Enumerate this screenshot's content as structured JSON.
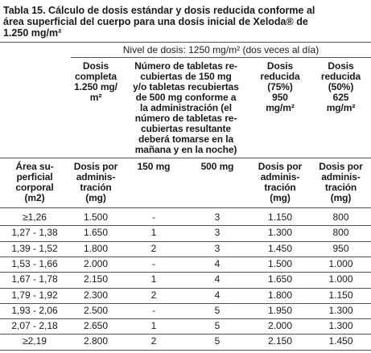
{
  "title": {
    "lines": [
      "Tabla 15. Cálculo de dosis estándar y dosis reducida conforme al",
      "área superficial del cuerpo para una dosis inicial de Xeloda® de",
      "1.250 mg/m²"
    ]
  },
  "table": {
    "group_header": "Nivel de dosis: 1250 mg/m² (dos veces al día)",
    "header_top": [
      "Dosis\ncompleta\n1.250 mg/\nm²",
      "Número de tabletas re-\ncubiertas de 150 mg\ny/o tabletas recubiertas\nde 500 mg conforme a\nla administración (el\nnúmero de tabletas re-\ncubiertas resultante\ndeberá tomarse en la\nmañana y en la noche)",
      "Dosis\nreducida\n(75%)\n950\nmg/m²",
      "Dosis\nreducida\n(50%)\n625\nmg/m²"
    ],
    "header": [
      "Área su-\nperficial\ncorporal\n(m2)",
      "Dosis por\nadminis-\ntración\n(mg)",
      "150 mg",
      "500 mg",
      "Dosis por\nadminis-\ntración\n(mg)",
      "Dosis por\nadminis-\ntración\n(mg)"
    ],
    "rows": [
      [
        "≥1,26",
        "1.500",
        "-",
        "3",
        "1.150",
        "800"
      ],
      [
        "1,27 - 1,38",
        "1.650",
        "1",
        "3",
        "1.300",
        "800"
      ],
      [
        "1,39 - 1,52",
        "1.800",
        "2",
        "3",
        "1.450",
        "950"
      ],
      [
        "1,53 - 1,66",
        "2.000",
        "-",
        "4",
        "1.500",
        "1.000"
      ],
      [
        "1,67 - 1,78",
        "2.150",
        "1",
        "4",
        "1.650",
        "1.000"
      ],
      [
        "1,79 - 1,92",
        "2.300",
        "2",
        "4",
        "1.800",
        "1.150"
      ],
      [
        "1,93 - 2,06",
        "2.500",
        "-",
        "5",
        "1.950",
        "1.300"
      ],
      [
        "2,07 - 2,18",
        "2.650",
        "1",
        "5",
        "2.000",
        "1.300"
      ],
      [
        "≥2,19",
        "2.800",
        "2",
        "5",
        "2.150",
        "1.450"
      ]
    ]
  }
}
